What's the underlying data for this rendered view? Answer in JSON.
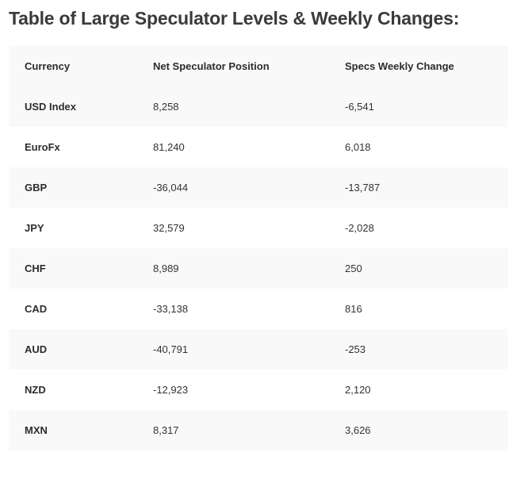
{
  "title": "Table of Large Speculator Levels & Weekly Changes:",
  "table": {
    "headers": [
      "Currency",
      "Net Speculator Position",
      "Specs Weekly Change"
    ],
    "rows": [
      [
        "USD Index",
        "8,258",
        "-6,541"
      ],
      [
        "EuroFx",
        "81,240",
        "6,018"
      ],
      [
        "GBP",
        "-36,044",
        "-13,787"
      ],
      [
        "JPY",
        "32,579",
        "-2,028"
      ],
      [
        "CHF",
        "8,989",
        "250"
      ],
      [
        "CAD",
        "-33,138",
        "816"
      ],
      [
        "AUD",
        "-40,791",
        "-253"
      ],
      [
        "NZD",
        "-12,923",
        "2,120"
      ],
      [
        "MXN",
        "8,317",
        "3,626"
      ]
    ]
  },
  "colors": {
    "row_shade": "#f9f9f9",
    "row_plain": "#ffffff",
    "title_text": "#3a3a3a"
  }
}
